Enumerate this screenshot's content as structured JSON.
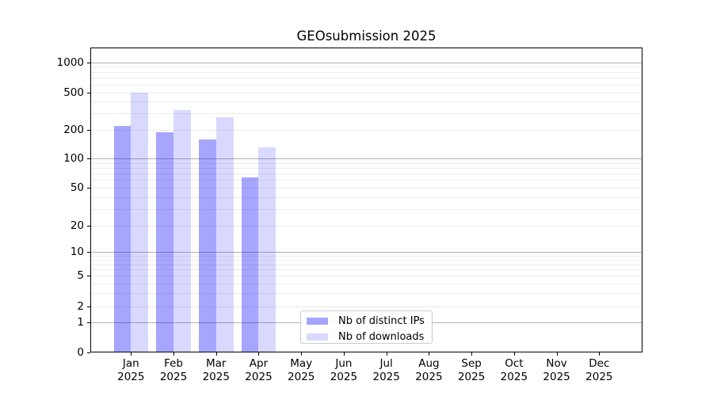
{
  "title": "GEOsubmission 2025",
  "chart_data": {
    "type": "bar",
    "title": "GEOsubmission 2025",
    "categories": [
      "Jan",
      "Feb",
      "Mar",
      "Apr",
      "May",
      "Jun",
      "Jul",
      "Aug",
      "Sep",
      "Oct",
      "Nov",
      "Dec"
    ],
    "year_label": "2025",
    "series": [
      {
        "name": "Nb of distinct IPs",
        "values": [
          220,
          190,
          160,
          64,
          null,
          null,
          null,
          null,
          null,
          null,
          null,
          null
        ]
      },
      {
        "name": "Nb of downloads",
        "values": [
          500,
          325,
          275,
          130,
          null,
          null,
          null,
          null,
          null,
          null,
          null,
          null
        ]
      }
    ],
    "yscale": "symlog",
    "ytick_labels": [
      "0",
      "1",
      "2",
      "5",
      "10",
      "20",
      "50",
      "100",
      "200",
      "500",
      "1000"
    ],
    "ytick_values": [
      0,
      1,
      2,
      5,
      10,
      20,
      50,
      100,
      200,
      500,
      1000
    ],
    "ylim": [
      0,
      2500
    ],
    "xlabel": "",
    "ylabel": "",
    "grid": "both",
    "legend_position": "lower-center-inside"
  },
  "legend": {
    "items": [
      {
        "label": "Nb of distinct IPs"
      },
      {
        "label": "Nb of downloads"
      }
    ]
  },
  "colors": {
    "series_distinct_ips": "rgba(0,0,255,0.35)",
    "series_downloads": "rgba(0,0,255,0.15)",
    "grid_major": "#b3b3b3",
    "grid_minor": "#ebebeb",
    "spine": "#000000",
    "background": "#ffffff"
  }
}
